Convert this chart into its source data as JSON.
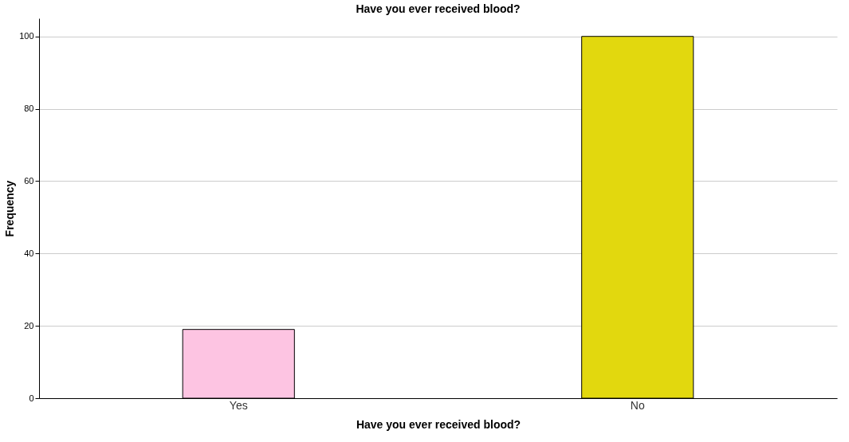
{
  "chart_data": {
    "type": "bar",
    "title": "Have you ever received blood?",
    "xlabel": "Have you ever received blood?",
    "ylabel": "Frequency",
    "categories": [
      "Yes",
      "No"
    ],
    "values": [
      19,
      100
    ],
    "colors": [
      "#fdc4e2",
      "#e2d80e"
    ],
    "ylim": [
      0,
      105
    ],
    "yticks": [
      0,
      20,
      40,
      60,
      80,
      100
    ],
    "grid": "y"
  }
}
